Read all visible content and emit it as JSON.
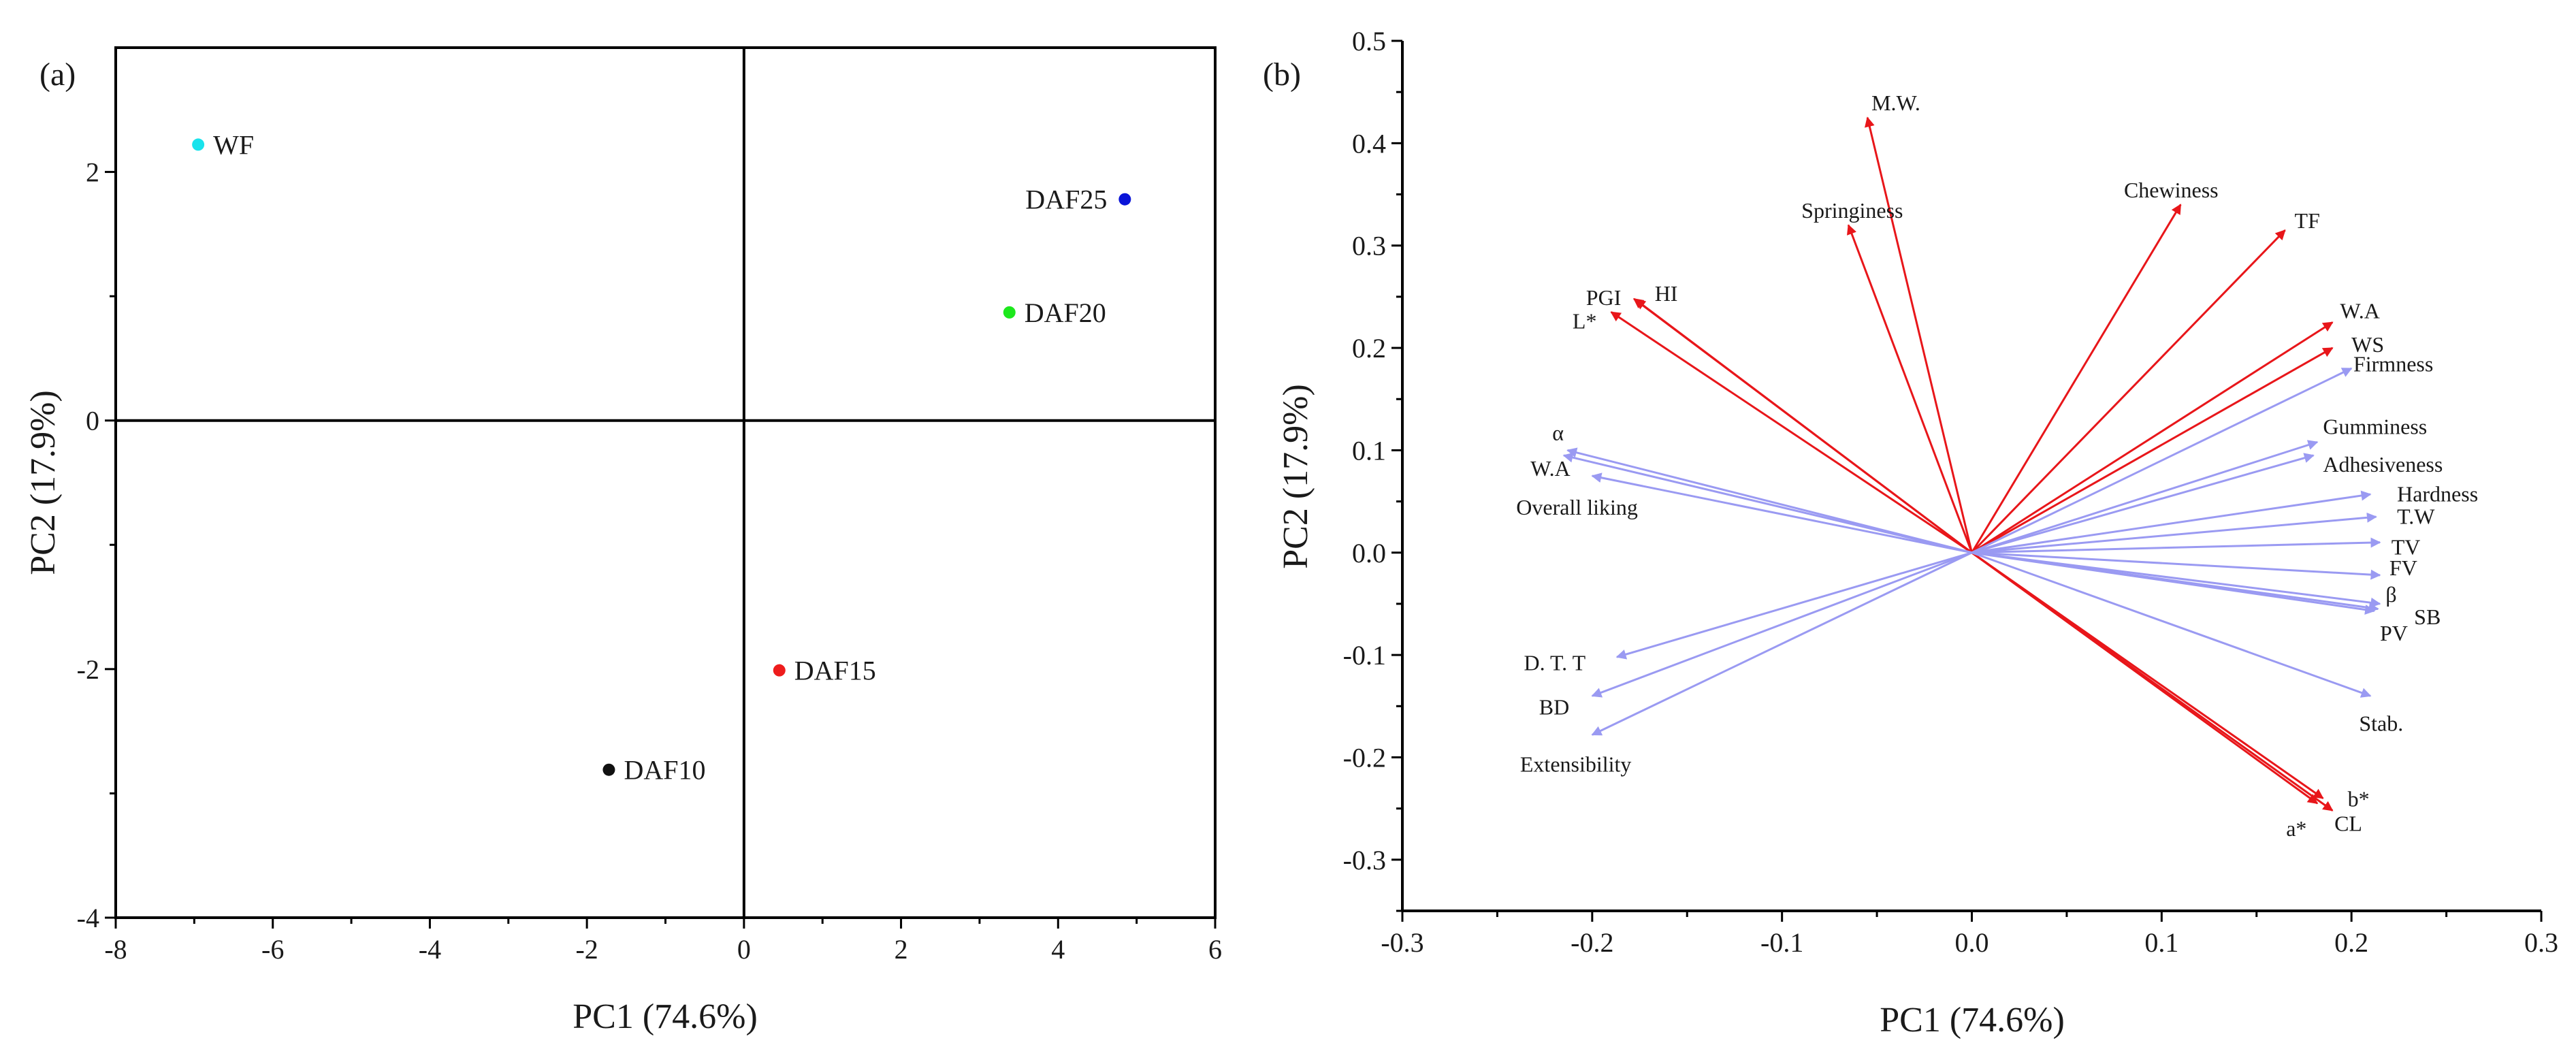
{
  "chart_data": [
    {
      "panel_label": "(a)",
      "type": "scatter",
      "xlabel": "PC1 (74.6%)",
      "ylabel": "PC2 (17.9%)",
      "xlim": [
        -8,
        6
      ],
      "ylim": [
        -4,
        3
      ],
      "xticks": [
        -8,
        -6,
        -4,
        -2,
        0,
        2,
        4,
        6
      ],
      "yticks": [
        -4,
        -2,
        0,
        2
      ],
      "zero_lines": true,
      "points": [
        {
          "label": "WF",
          "x": -6.95,
          "y": 2.22,
          "color": "#19e3ec",
          "label_side": "right"
        },
        {
          "label": "DAF25",
          "x": 4.85,
          "y": 1.78,
          "color": "#0a14d8",
          "label_side": "left"
        },
        {
          "label": "DAF20",
          "x": 3.38,
          "y": 0.87,
          "color": "#1de81d",
          "label_side": "right"
        },
        {
          "label": "DAF15",
          "x": 0.45,
          "y": -2.01,
          "color": "#ee1c1c",
          "label_side": "right"
        },
        {
          "label": "DAF10",
          "x": -1.72,
          "y": -2.81,
          "color": "#111111",
          "label_side": "right"
        }
      ]
    },
    {
      "panel_label": "(b)",
      "type": "biplot",
      "xlabel": "PC1 (74.6%)",
      "ylabel": "PC2 (17.9%)",
      "xlim": [
        -0.3,
        0.3
      ],
      "ylim": [
        -0.35,
        0.5
      ],
      "xticks": [
        -0.3,
        -0.2,
        -0.1,
        0.0,
        0.1,
        0.2,
        0.3
      ],
      "xtick_labels": [
        "-0.3",
        "-0.2",
        "-0.1",
        "0.0",
        "0.1",
        "0.2",
        "0.3"
      ],
      "yticks": [
        -0.3,
        -0.2,
        -0.1,
        0.0,
        0.1,
        0.2,
        0.3,
        0.4,
        0.5
      ],
      "ytick_labels": [
        "-0.3",
        "-0.2",
        "-0.1",
        "0.0",
        "0.1",
        "0.2",
        "0.3",
        "0.4",
        "0.5"
      ],
      "colors": {
        "red_vectors": "#e8161a",
        "blue_vectors": "#9a9af2"
      },
      "vectors": [
        {
          "label": "M.W.",
          "x": -0.055,
          "y": 0.425,
          "group": "red",
          "lx": -0.04,
          "ly": 0.44,
          "anchor": "middle"
        },
        {
          "label": "Springiness",
          "x": -0.065,
          "y": 0.32,
          "group": "red",
          "lx": -0.063,
          "ly": 0.335,
          "anchor": "middle"
        },
        {
          "label": "Chewiness",
          "x": 0.11,
          "y": 0.34,
          "group": "red",
          "lx": 0.105,
          "ly": 0.355,
          "anchor": "middle"
        },
        {
          "label": "TF",
          "x": 0.165,
          "y": 0.315,
          "group": "red",
          "lx": 0.17,
          "ly": 0.325,
          "anchor": "start"
        },
        {
          "label": "PGI",
          "x": -0.178,
          "y": 0.248,
          "group": "red",
          "lx": -0.194,
          "ly": 0.25,
          "anchor": "middle"
        },
        {
          "label": "HI",
          "x": -0.177,
          "y": 0.247,
          "group": "red",
          "lx": -0.161,
          "ly": 0.254,
          "anchor": "middle"
        },
        {
          "label": "L*",
          "x": -0.19,
          "y": 0.235,
          "group": "red",
          "lx": -0.204,
          "ly": 0.227,
          "anchor": "middle"
        },
        {
          "label": "W.A",
          "x": 0.19,
          "y": 0.225,
          "group": "red",
          "lx": 0.194,
          "ly": 0.237,
          "anchor": "start"
        },
        {
          "label": "WS",
          "x": 0.19,
          "y": 0.2,
          "group": "red",
          "lx": 0.2,
          "ly": 0.204,
          "anchor": "start"
        },
        {
          "label": "b*",
          "x": 0.185,
          "y": -0.24,
          "group": "red",
          "lx": 0.198,
          "ly": -0.24,
          "anchor": "start"
        },
        {
          "label": "CL",
          "x": 0.19,
          "y": -0.252,
          "group": "red",
          "lx": 0.191,
          "ly": -0.264,
          "anchor": "start"
        },
        {
          "label": "a*",
          "x": 0.182,
          "y": -0.245,
          "group": "red",
          "lx": 0.171,
          "ly": -0.269,
          "anchor": "middle"
        },
        {
          "label": "Firmness",
          "x": 0.2,
          "y": 0.18,
          "group": "blue",
          "lx": 0.201,
          "ly": 0.185,
          "anchor": "start"
        },
        {
          "label": "Gumminess",
          "x": 0.182,
          "y": 0.108,
          "group": "blue",
          "lx": 0.185,
          "ly": 0.124,
          "anchor": "start"
        },
        {
          "label": "Adhesiveness",
          "x": 0.18,
          "y": 0.095,
          "group": "blue",
          "lx": 0.185,
          "ly": 0.087,
          "anchor": "start"
        },
        {
          "label": "Hardness",
          "x": 0.21,
          "y": 0.057,
          "group": "blue",
          "lx": 0.224,
          "ly": 0.058,
          "anchor": "start"
        },
        {
          "label": "T.W",
          "x": 0.213,
          "y": 0.035,
          "group": "blue",
          "lx": 0.224,
          "ly": 0.036,
          "anchor": "start"
        },
        {
          "label": "TV",
          "x": 0.215,
          "y": 0.01,
          "group": "blue",
          "lx": 0.221,
          "ly": 0.006,
          "anchor": "start"
        },
        {
          "label": "FV",
          "x": 0.215,
          "y": -0.022,
          "group": "blue",
          "lx": 0.22,
          "ly": -0.014,
          "anchor": "start"
        },
        {
          "label": "β",
          "x": 0.215,
          "y": -0.05,
          "group": "blue",
          "lx": 0.218,
          "ly": -0.04,
          "anchor": "start"
        },
        {
          "label": "SB",
          "x": 0.214,
          "y": -0.055,
          "group": "blue",
          "lx": 0.233,
          "ly": -0.062,
          "anchor": "start"
        },
        {
          "label": "PV",
          "x": 0.212,
          "y": -0.057,
          "group": "blue",
          "lx": 0.215,
          "ly": -0.078,
          "anchor": "start"
        },
        {
          "label": "Stab.",
          "x": 0.21,
          "y": -0.14,
          "group": "blue",
          "lx": 0.204,
          "ly": -0.166,
          "anchor": "start"
        },
        {
          "label": "α",
          "x": -0.213,
          "y": 0.1,
          "group": "blue",
          "lx": -0.218,
          "ly": 0.118,
          "anchor": "middle"
        },
        {
          "label": "W.A",
          "x": -0.215,
          "y": 0.095,
          "group": "blue",
          "lx": -0.222,
          "ly": 0.083,
          "anchor": "middle"
        },
        {
          "label": "Overall liking",
          "x": -0.2,
          "y": 0.075,
          "group": "blue",
          "lx": -0.24,
          "ly": 0.045,
          "anchor": "start"
        },
        {
          "label": "D. T. T",
          "x": -0.187,
          "y": -0.102,
          "group": "blue",
          "lx": -0.236,
          "ly": -0.107,
          "anchor": "start"
        },
        {
          "label": "BD",
          "x": -0.2,
          "y": -0.14,
          "group": "blue",
          "lx": -0.228,
          "ly": -0.15,
          "anchor": "start"
        },
        {
          "label": "Extensibility",
          "x": -0.2,
          "y": -0.178,
          "group": "blue",
          "lx": -0.238,
          "ly": -0.206,
          "anchor": "start"
        }
      ]
    }
  ]
}
